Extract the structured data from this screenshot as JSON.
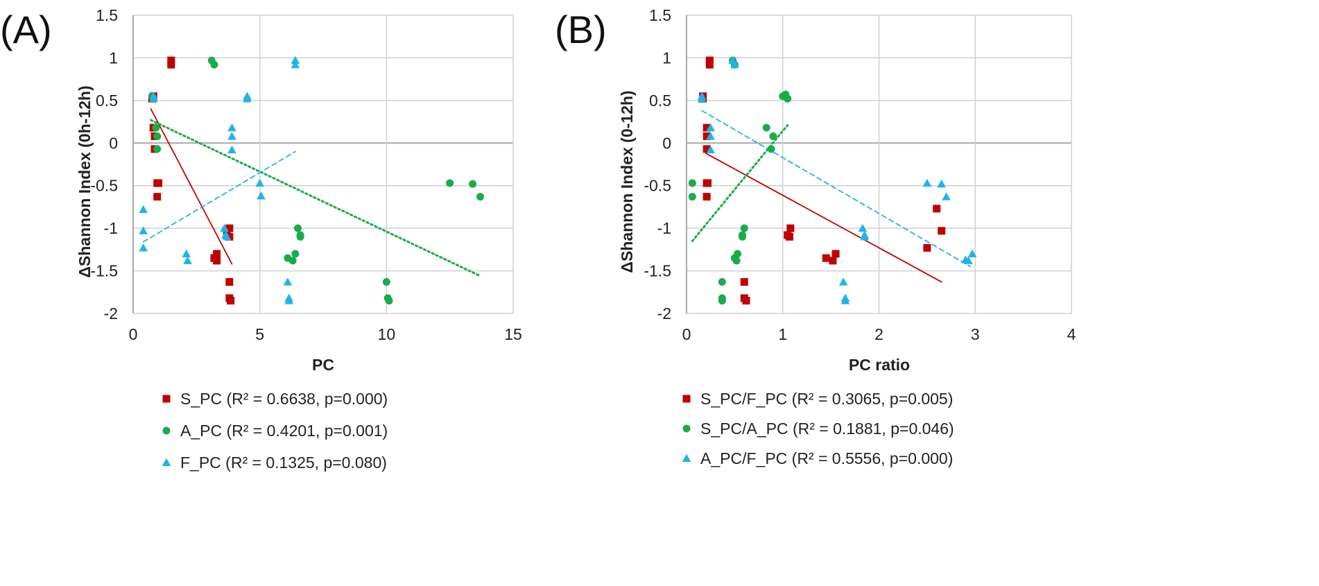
{
  "colors": {
    "S": "#c00000",
    "A": "#1aab4b",
    "F": "#1fb4e8"
  },
  "chart_data": [
    {
      "type": "scatter",
      "panel_label": "(A)",
      "title": "",
      "xlabel": "PC",
      "ylabel": "ΔShannon Index (0h-12h)",
      "xlim": [
        0,
        15
      ],
      "ylim": [
        -2,
        1.5
      ],
      "xticks": [
        0,
        5,
        10,
        15
      ],
      "yticks": [
        -2,
        -1.5,
        -1,
        -0.5,
        0,
        0.5,
        1,
        1.5
      ],
      "grid": true,
      "series": [
        {
          "name": "S_PC",
          "marker": "square",
          "color": "#c00000",
          "legend": "S_PC (R² = 0.6638, p=0.000)",
          "points": [
            [
              0.8,
              0.55
            ],
            [
              0.75,
              0.52
            ],
            [
              1.5,
              0.97
            ],
            [
              1.5,
              0.92
            ],
            [
              0.8,
              0.18
            ],
            [
              0.85,
              0.08
            ],
            [
              0.85,
              -0.07
            ],
            [
              1.0,
              -0.47
            ],
            [
              0.95,
              -0.47
            ],
            [
              0.95,
              -0.63
            ],
            [
              3.2,
              -1.35
            ],
            [
              3.3,
              -1.38
            ],
            [
              3.3,
              -1.3
            ],
            [
              3.7,
              -1.08
            ],
            [
              3.8,
              -1.1
            ],
            [
              3.8,
              -1.0
            ],
            [
              3.8,
              -1.63
            ],
            [
              3.8,
              -1.82
            ],
            [
              3.85,
              -1.85
            ]
          ],
          "trend": {
            "x": [
              0.7,
              3.9
            ],
            "y": [
              0.4,
              -1.42
            ],
            "style": "solid"
          }
        },
        {
          "name": "A_PC",
          "marker": "circle",
          "color": "#1aab4b",
          "legend": "A_PC (R² = 0.4201, p=0.001)",
          "points": [
            [
              0.75,
              0.55
            ],
            [
              0.8,
              0.52
            ],
            [
              0.9,
              0.18
            ],
            [
              0.95,
              0.08
            ],
            [
              0.95,
              -0.07
            ],
            [
              3.1,
              0.97
            ],
            [
              3.2,
              0.92
            ],
            [
              6.1,
              -1.35
            ],
            [
              6.3,
              -1.38
            ],
            [
              6.4,
              -1.3
            ],
            [
              6.5,
              -1.0
            ],
            [
              6.6,
              -1.08
            ],
            [
              6.6,
              -1.1
            ],
            [
              10.0,
              -1.63
            ],
            [
              10.05,
              -1.82
            ],
            [
              10.1,
              -1.85
            ],
            [
              12.5,
              -0.47
            ],
            [
              13.4,
              -0.48
            ],
            [
              13.7,
              -0.63
            ]
          ],
          "trend": {
            "x": [
              0.7,
              13.7
            ],
            "y": [
              0.27,
              -1.56
            ],
            "style": "dotted"
          }
        },
        {
          "name": "F_PC",
          "marker": "triangle",
          "color": "#1fb4e8",
          "legend": "F_PC (R² = 0.1325, p=0.080)",
          "points": [
            [
              0.4,
              -0.78
            ],
            [
              0.4,
              -1.03
            ],
            [
              0.4,
              -1.23
            ],
            [
              0.8,
              0.52
            ],
            [
              0.8,
              0.55
            ],
            [
              2.1,
              -1.3
            ],
            [
              2.15,
              -1.38
            ],
            [
              3.6,
              -1.0
            ],
            [
              3.65,
              -1.08
            ],
            [
              3.7,
              -1.1
            ],
            [
              3.9,
              0.18
            ],
            [
              3.9,
              0.08
            ],
            [
              3.9,
              -0.08
            ],
            [
              4.5,
              0.55
            ],
            [
              4.5,
              0.52
            ],
            [
              5.0,
              -0.47
            ],
            [
              5.05,
              -0.62
            ],
            [
              6.1,
              -1.63
            ],
            [
              6.15,
              -1.82
            ],
            [
              6.15,
              -1.85
            ],
            [
              6.4,
              0.97
            ],
            [
              6.4,
              0.92
            ]
          ],
          "trend": {
            "x": [
              0.4,
              6.4
            ],
            "y": [
              -1.16,
              -0.1
            ],
            "style": "dashed"
          }
        }
      ]
    },
    {
      "type": "scatter",
      "panel_label": "(B)",
      "title": "",
      "xlabel": "PC ratio",
      "ylabel": "ΔShannon Index (0-12h)",
      "xlim": [
        0,
        4
      ],
      "ylim": [
        -2,
        1.5
      ],
      "xticks": [
        0,
        1,
        2,
        3,
        4
      ],
      "yticks": [
        -2,
        -1.5,
        -1,
        -0.5,
        0,
        0.5,
        1,
        1.5
      ],
      "grid": true,
      "series": [
        {
          "name": "S_PC/F_PC",
          "marker": "square",
          "color": "#c00000",
          "legend": "S_PC/F_PC (R² = 0.3065, p=0.005)",
          "points": [
            [
              0.17,
              0.55
            ],
            [
              0.17,
              0.52
            ],
            [
              0.24,
              0.97
            ],
            [
              0.24,
              0.92
            ],
            [
              0.21,
              0.18
            ],
            [
              0.21,
              0.08
            ],
            [
              0.21,
              -0.07
            ],
            [
              0.21,
              -0.47
            ],
            [
              0.22,
              -0.47
            ],
            [
              0.21,
              -0.63
            ],
            [
              0.6,
              -1.63
            ],
            [
              0.6,
              -1.82
            ],
            [
              0.62,
              -1.85
            ],
            [
              1.05,
              -1.08
            ],
            [
              1.07,
              -1.1
            ],
            [
              1.08,
              -1.0
            ],
            [
              1.45,
              -1.35
            ],
            [
              1.52,
              -1.38
            ],
            [
              1.55,
              -1.3
            ],
            [
              2.5,
              -1.23
            ],
            [
              2.6,
              -0.77
            ],
            [
              2.65,
              -1.03
            ]
          ],
          "trend": {
            "x": [
              0.2,
              2.65
            ],
            "y": [
              -0.12,
              -1.63
            ],
            "style": "solid"
          }
        },
        {
          "name": "S_PC/A_PC",
          "marker": "circle",
          "color": "#1aab4b",
          "legend": "S_PC/A_PC (R² = 0.1881, p=0.046)",
          "points": [
            [
              0.06,
              -0.47
            ],
            [
              0.06,
              -0.63
            ],
            [
              0.37,
              -1.63
            ],
            [
              0.37,
              -1.82
            ],
            [
              0.37,
              -1.85
            ],
            [
              0.48,
              0.97
            ],
            [
              0.5,
              0.92
            ],
            [
              0.5,
              -1.35
            ],
            [
              0.52,
              -1.38
            ],
            [
              0.53,
              -1.3
            ],
            [
              0.58,
              -1.08
            ],
            [
              0.58,
              -1.1
            ],
            [
              0.6,
              -1.0
            ],
            [
              0.83,
              0.18
            ],
            [
              0.9,
              0.08
            ],
            [
              0.88,
              -0.07
            ],
            [
              1.0,
              0.55
            ],
            [
              1.03,
              0.57
            ],
            [
              1.05,
              0.52
            ]
          ],
          "trend": {
            "x": [
              0.06,
              1.05
            ],
            "y": [
              -1.15,
              0.21
            ],
            "style": "dotted"
          }
        },
        {
          "name": "A_PC/F_PC",
          "marker": "triangle",
          "color": "#1fb4e8",
          "legend": "A_PC/F_PC (R² = 0.5556, p=0.000)",
          "points": [
            [
              0.16,
              0.55
            ],
            [
              0.16,
              0.52
            ],
            [
              0.25,
              0.18
            ],
            [
              0.25,
              0.08
            ],
            [
              0.25,
              -0.08
            ],
            [
              0.48,
              0.97
            ],
            [
              0.5,
              0.92
            ],
            [
              1.63,
              -1.63
            ],
            [
              1.65,
              -1.82
            ],
            [
              1.65,
              -1.85
            ],
            [
              1.83,
              -1.0
            ],
            [
              1.85,
              -1.08
            ],
            [
              1.85,
              -1.1
            ],
            [
              2.5,
              -0.47
            ],
            [
              2.65,
              -0.48
            ],
            [
              2.7,
              -0.63
            ],
            [
              2.9,
              -1.37
            ],
            [
              2.93,
              -1.38
            ],
            [
              2.97,
              -1.3
            ]
          ],
          "trend": {
            "x": [
              0.16,
              2.95
            ],
            "y": [
              0.38,
              -1.45
            ],
            "style": "dashed"
          }
        }
      ]
    }
  ]
}
